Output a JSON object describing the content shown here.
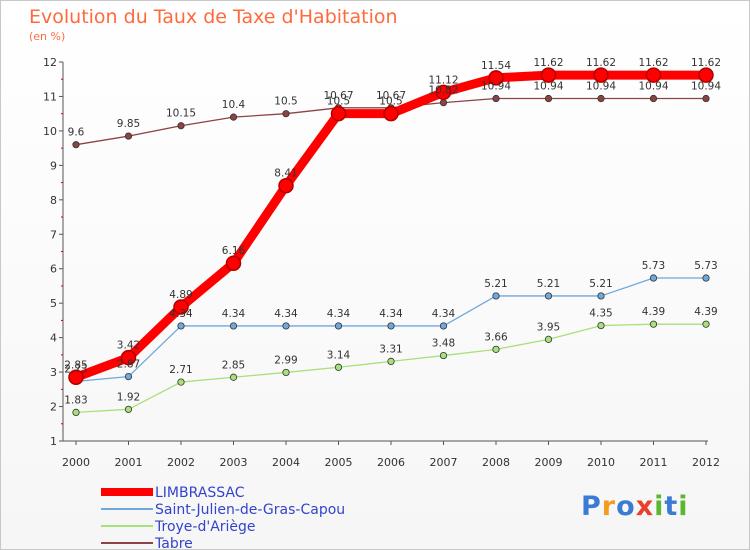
{
  "header": {
    "title": "Evolution du Taux de Taxe d'Habitation",
    "subtitle": "(en %)"
  },
  "logo": {
    "letters": [
      "P",
      "r",
      "o",
      "x",
      "i",
      "t",
      "i"
    ],
    "colors": [
      "#3a7bd5",
      "#f59b1f",
      "#3a7bd5",
      "#e8402b",
      "#5bb82e",
      "#3a7bd5",
      "#5bb82e"
    ]
  },
  "chart_data": {
    "type": "line",
    "title": "Evolution du Taux de Taxe d'Habitation",
    "ylabel": "(en %)",
    "xlabel": "",
    "x": [
      "2000",
      "2001",
      "2002",
      "2003",
      "2004",
      "2005",
      "2006",
      "2007",
      "2008",
      "2009",
      "2010",
      "2011",
      "2012"
    ],
    "ylim": [
      1,
      12
    ],
    "yticks": [
      "1",
      "2",
      "3",
      "4",
      "5",
      "6",
      "7",
      "8",
      "9",
      "10",
      "11",
      "12"
    ],
    "grid": false,
    "legend": "bottom-left",
    "series": [
      {
        "name": "LIMBRASSAC",
        "color": "#ff0000",
        "emphasis": true,
        "values": [
          2.85,
          3.42,
          4.89,
          6.16,
          8.41,
          10.5,
          10.5,
          11.12,
          11.54,
          11.62,
          11.62,
          11.62,
          11.62
        ],
        "labels": [
          "2.85",
          "3.42",
          "4.89",
          "6.16",
          "8.41",
          "10.5",
          "10.5",
          "11.12",
          "11.54",
          "11.62",
          "11.62",
          "11.62",
          "11.62"
        ]
      },
      {
        "name": "Saint-Julien-de-Gras-Capou",
        "color": "#6fa8dc",
        "emphasis": false,
        "values": [
          2.73,
          2.87,
          4.34,
          4.34,
          4.34,
          4.34,
          4.34,
          4.34,
          5.21,
          5.21,
          5.21,
          5.73,
          5.73
        ],
        "labels": [
          "2.73",
          "2.87",
          "4.34",
          "4.34",
          "4.34",
          "4.34",
          "4.34",
          "4.34",
          "5.21",
          "5.21",
          "5.21",
          "5.73",
          "5.73"
        ]
      },
      {
        "name": "Troye-d'Ariège",
        "color": "#a8e07a",
        "emphasis": false,
        "values": [
          1.83,
          1.92,
          2.71,
          2.85,
          2.99,
          3.14,
          3.31,
          3.48,
          3.66,
          3.95,
          4.35,
          4.39,
          4.39
        ],
        "labels": [
          "1.83",
          "1.92",
          "2.71",
          "2.85",
          "2.99",
          "3.14",
          "3.31",
          "3.48",
          "3.66",
          "3.95",
          "4.35",
          "4.39",
          "4.39"
        ]
      },
      {
        "name": "Tabre",
        "color": "#8b4343",
        "emphasis": false,
        "values": [
          9.6,
          9.85,
          10.15,
          10.4,
          10.5,
          10.67,
          10.67,
          10.82,
          10.94,
          10.94,
          10.94,
          10.94,
          10.94
        ],
        "labels": [
          "9.6",
          "9.85",
          "10.15",
          "10.4",
          "10.5",
          "10.67",
          "10.67",
          "10.82",
          "10.94",
          "10.94",
          "10.94",
          "10.94",
          "10.94"
        ]
      }
    ]
  }
}
